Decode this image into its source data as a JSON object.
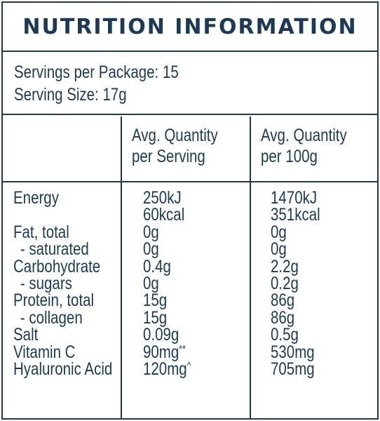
{
  "title": "NUTRITION INFORMATION",
  "servings_per_package": "Servings per Package: 15",
  "serving_size": "Serving Size: 17g",
  "headers": {
    "per_serving": [
      "Avg. Quantity",
      "per Serving"
    ],
    "per_100g": [
      "Avg. Quantity",
      "per 100g"
    ]
  },
  "rows": [
    {
      "name": "Energy",
      "serving": "250kJ",
      "per100": "1470kJ"
    },
    {
      "name": "",
      "serving": "60kcal",
      "per100": "351kcal"
    },
    {
      "name": "Fat, total",
      "serving": "0g",
      "per100": "0g"
    },
    {
      "name": "- saturated",
      "serving": "0g",
      "per100": "0g"
    },
    {
      "name": "Carbohydrate",
      "serving": "0.4g",
      "per100": "2.2g"
    },
    {
      "name": "- sugars",
      "serving": "0g",
      "per100": "0.2g"
    },
    {
      "name": "Protein, total",
      "serving": "15g",
      "per100": "86g"
    },
    {
      "name": "- collagen",
      "serving": "15g",
      "per100": "86g"
    },
    {
      "name": "Salt",
      "serving": "0.09g",
      "per100": "0.5g"
    },
    {
      "name": "Vitamin C",
      "serving": "90mg",
      "serving_note": "**",
      "per100": "530mg"
    },
    {
      "name": "Hyaluronic Acid",
      "serving": "120mg",
      "serving_note": "^",
      "per100": "705mg"
    }
  ]
}
